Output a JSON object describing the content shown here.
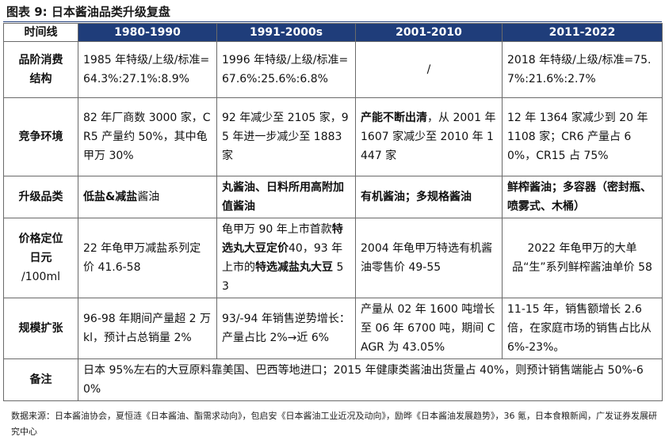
{
  "title": "图表 9:  日本酱油品类升级复盘",
  "header": {
    "label": "时间线",
    "periods": [
      "1980-1990",
      "1991-2000s",
      "2001-2010",
      "2011-2022"
    ]
  },
  "rows": [
    {
      "label_lines": [
        "品阶消费",
        "结构"
      ],
      "cells": [
        "1985 年特级/上级/标准=64.3%:27.1%:8.9%",
        "1996 年特级/上级/标准=67.6%:25.6%:6.8%",
        "/",
        "2018 年特级/上级/标准=75.7%:21.6%:2.7%"
      ]
    },
    {
      "label_lines": [
        "竞争环境"
      ],
      "c1": "82 年厂商数 3000 家，CR5 产量约 50%，其中龟甲万 30%",
      "c2": "92 年减少至 2105 家，95 年进一步减少至 1883 家",
      "c3_bold": "产能不断出清",
      "c3_rest": "，从 2001 年 1607 家减少至 2010 年 1447 家",
      "c4": "12 年 1364 家减少到 20 年 1108 家；CR6 产量占 60%，CR15 占 75%"
    },
    {
      "label_lines": [
        "升级品类"
      ],
      "c1_bold": "低盐&减盐",
      "c1_rest": "酱油",
      "c2": "丸酱油、日料所用高附加值酱油",
      "c3": "有机酱油；多规格酱油",
      "c4": "鲜榨酱油；多容器（密封瓶、喷雾式、木桶）"
    },
    {
      "label_lines": [
        "价格定位",
        "日元",
        "/100ml"
      ],
      "c1": "22 年龟甲万减盐系列定价 41.6-58",
      "c2_a": "龟甲万 90 年上市首款",
      "c2_b": "特选丸大豆定价",
      "c2_c": "40，93 年上市的",
      "c2_d": "特选减盐丸大豆",
      "c2_e": " 53",
      "c3": "2004 年龟甲万特选有机酱油零售价 49-55",
      "c4": "2022 年龟甲万的大单品“生”系列鲜榨酱油单价 58"
    },
    {
      "label_lines": [
        "规模扩张"
      ],
      "cells": [
        "96-98 年期间产量超 2 万 kl，预计占总销量 2%",
        "93/-94 年销售逆势增长：产量占比 2%→近 6%",
        "产量从 02 年 1600 吨增长至 06 年 6700 吨，期间 CAGR 为 43.05%",
        "11-15 年，销售额增长 2.6 倍，在家庭市场的销售占比从 6%-23%。"
      ]
    },
    {
      "label_lines": [
        "备注"
      ],
      "note": "日本 95%左右的大豆原料靠美国、巴西等地进口；2015 年健康类酱油出货量占 40%，则预计销售端能占 50%-60%"
    }
  ],
  "source": "数据来源：日本酱油协会，夏恒涟《日本酱油、酯需求动向》，包启安《日本酱油工业近况及动向》，励晔《日本酱油发展趋势》，36 氪，日本食粮新闻，广发证券发展研究中心"
}
